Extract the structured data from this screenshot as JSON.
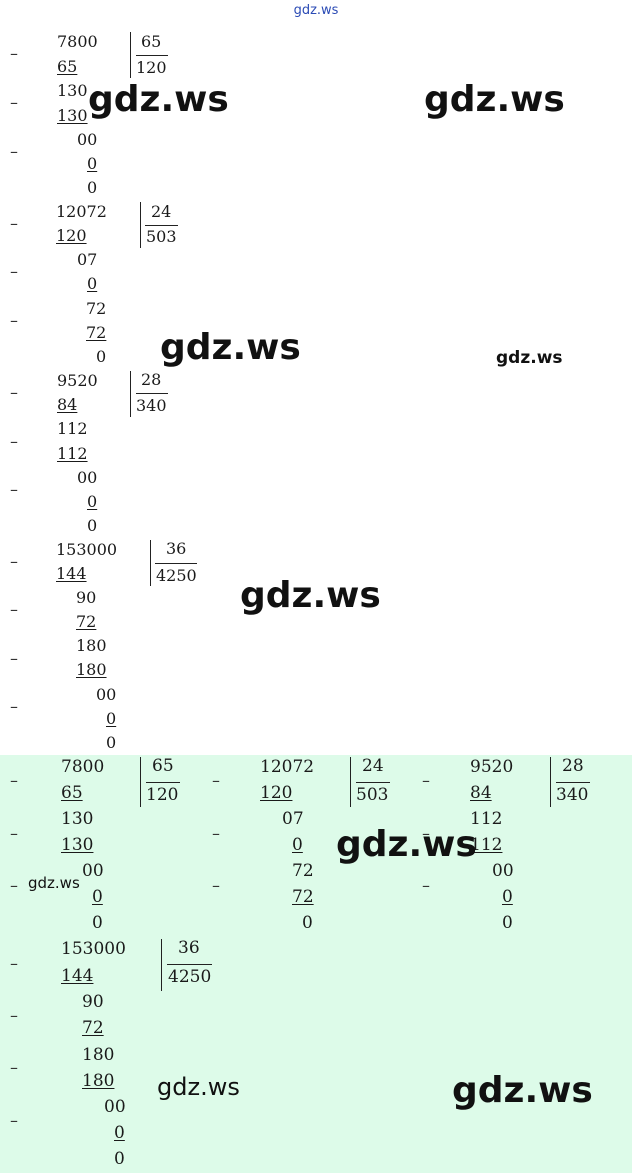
{
  "header": {
    "site": "gdz.ws"
  },
  "watermark": "gdz.ws",
  "minus": "–",
  "divisions": [
    {
      "dividend": "7800",
      "divisor": "65",
      "quotient": "120",
      "steps": [
        "65",
        "130",
        "130",
        "00",
        "0",
        "0"
      ]
    },
    {
      "dividend": "12072",
      "divisor": "24",
      "quotient": "503",
      "steps": [
        "120",
        "07",
        "0",
        "72",
        "72",
        "0"
      ]
    },
    {
      "dividend": "9520",
      "divisor": "28",
      "quotient": "340",
      "steps": [
        "84",
        "112",
        "112",
        "00",
        "0",
        "0"
      ]
    },
    {
      "dividend": "153000",
      "divisor": "36",
      "quotient": "4250",
      "steps": [
        "144",
        "90",
        "72",
        "180",
        "180",
        "00",
        "0",
        "0"
      ]
    }
  ]
}
